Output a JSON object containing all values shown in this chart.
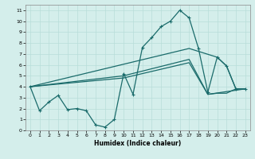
{
  "xlabel": "Humidex (Indice chaleur)",
  "background_color": "#d4eeeb",
  "line_color": "#1a6b6b",
  "grid_color": "#b8ddd9",
  "xlim": [
    -0.5,
    23.5
  ],
  "ylim": [
    0,
    11.5
  ],
  "xticks": [
    0,
    1,
    2,
    3,
    4,
    5,
    6,
    7,
    8,
    9,
    10,
    11,
    12,
    13,
    14,
    15,
    16,
    17,
    18,
    19,
    20,
    21,
    22,
    23
  ],
  "yticks": [
    0,
    1,
    2,
    3,
    4,
    5,
    6,
    7,
    8,
    9,
    10,
    11
  ],
  "series1_x": [
    0,
    1,
    2,
    3,
    4,
    5,
    6,
    7,
    8,
    9,
    10,
    11,
    12,
    13,
    14,
    15,
    16,
    17,
    18,
    19,
    20,
    21,
    22,
    23
  ],
  "series1_y": [
    4.0,
    1.8,
    2.6,
    3.2,
    1.9,
    2.0,
    1.8,
    0.5,
    0.3,
    1.0,
    5.2,
    3.3,
    7.6,
    8.5,
    9.5,
    10.0,
    11.0,
    10.3,
    7.5,
    3.5,
    6.7,
    5.9,
    3.8,
    3.8
  ],
  "series2_x": [
    0,
    17,
    20,
    21,
    22,
    23
  ],
  "series2_y": [
    4.0,
    7.5,
    6.7,
    5.9,
    3.8,
    3.8
  ],
  "series3_x": [
    0,
    10,
    17,
    19,
    20,
    21,
    22,
    23
  ],
  "series3_y": [
    4.0,
    5.0,
    6.5,
    3.3,
    3.4,
    3.4,
    3.8,
    3.8
  ],
  "series4_x": [
    0,
    10,
    17,
    19,
    23
  ],
  "series4_y": [
    4.0,
    4.8,
    6.2,
    3.3,
    3.8
  ]
}
